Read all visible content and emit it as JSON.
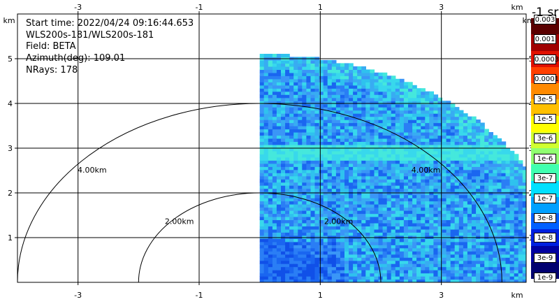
{
  "info": {
    "start_time": "Start time: 2022/04/24 09:16:44.653",
    "instrument": "WLS200s-181/WLS200s-181",
    "field": "Field: BETA",
    "azimuth": "Azimuth(deg): 109.01",
    "nrays": "NRays: 178"
  },
  "colorbar": {
    "title": "-1 sr",
    "labels": [
      "0.003",
      "0.001",
      "0.0003",
      "0.0001",
      "3e-5",
      "1e-5",
      "3e-6",
      "1e-6",
      "3e-7",
      "1e-7",
      "3e-8",
      "1e-8",
      "3e-9",
      "1e-9"
    ],
    "colors": [
      "#5a0000",
      "#a00000",
      "#e01000",
      "#ff4000",
      "#ff8a00",
      "#ffc000",
      "#ffff00",
      "#d0ff30",
      "#90ff70",
      "#40ffb0",
      "#00e0ff",
      "#00a0ff",
      "#0060ff",
      "#0020e0",
      "#0000a0",
      "#000070"
    ]
  },
  "chart_data": {
    "type": "heatmap",
    "title": "",
    "xlabel": "km",
    "ylabel": "km",
    "x_ticks": [
      -3,
      -1,
      1,
      3
    ],
    "y_ticks": [
      1,
      2,
      3,
      4,
      5
    ],
    "xlim": [
      -4.0,
      4.4
    ],
    "ylim": [
      0,
      6.0
    ],
    "range_rings": [
      {
        "radius_km": 2.0,
        "label": "2.00km"
      },
      {
        "radius_km": 4.0,
        "label": "4.00km"
      }
    ],
    "sector": {
      "x_min_km": 0.0,
      "max_range_km": 5.1
    },
    "legend": "colorbar-right"
  }
}
